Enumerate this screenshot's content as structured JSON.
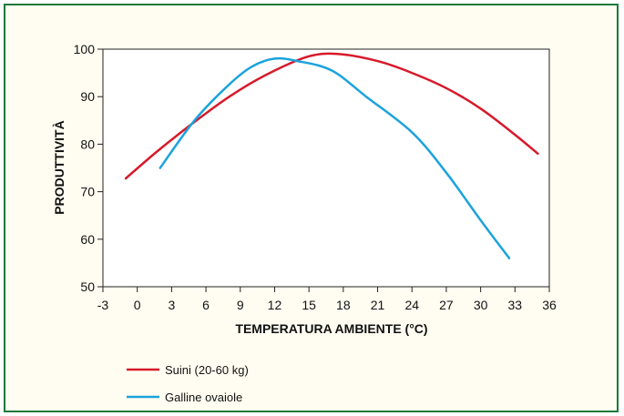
{
  "chart_data": {
    "type": "line",
    "xlabel": "TEMPERATURA AMBIENTE (°C)",
    "ylabel": "PRODUTTIVITÀ",
    "xlim": [
      -3,
      36
    ],
    "ylim": [
      50,
      100
    ],
    "xticks": [
      -3,
      0,
      3,
      6,
      9,
      12,
      15,
      18,
      21,
      24,
      27,
      30,
      33,
      36
    ],
    "yticks": [
      50,
      60,
      70,
      80,
      90,
      100
    ],
    "grid": false,
    "legend_position": "bottom-left",
    "series": [
      {
        "name": "Suini (20-60 kg)",
        "color": "#d7192a",
        "x": [
          -1,
          2,
          6,
          9,
          12,
          15,
          17.5,
          21,
          24,
          27,
          30,
          33,
          35
        ],
        "y": [
          72.8,
          79,
          86.5,
          91.5,
          95.5,
          98.5,
          99,
          97.5,
          95,
          91.8,
          87.5,
          82,
          78
        ]
      },
      {
        "name": "Galline ovaiole",
        "color": "#1ba3dc",
        "x": [
          2,
          5,
          8,
          10,
          12,
          14,
          17,
          20,
          24,
          27,
          30,
          32.5
        ],
        "y": [
          75,
          85,
          92.5,
          96.3,
          98,
          97.5,
          95.5,
          90,
          82.5,
          74,
          64,
          56
        ]
      }
    ]
  }
}
